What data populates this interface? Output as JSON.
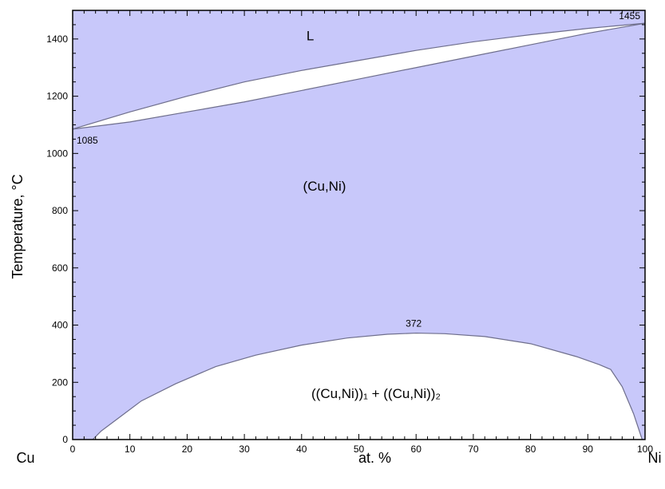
{
  "chart_data": {
    "type": "area",
    "xlabel": "at. %",
    "ylabel": "Temperature, °C",
    "xlim": [
      0,
      100
    ],
    "ylim": [
      0,
      1500
    ],
    "grid": false,
    "fill_color": "#c8c8fa",
    "line_color": "#6e6e8c",
    "gap_color": "#ffffff",
    "x_ticks": [
      0,
      10,
      20,
      30,
      40,
      50,
      60,
      70,
      80,
      90,
      100
    ],
    "y_ticks": [
      0,
      200,
      400,
      600,
      800,
      1000,
      1200,
      1400
    ],
    "x_end_labels": {
      "left": "Cu",
      "right": "Ni"
    },
    "region_labels": [
      {
        "text": "L",
        "x": 41.5,
        "y": 1395
      },
      {
        "text": "(Cu,Ni)",
        "x": 44,
        "y": 870
      },
      {
        "text": "((Cu,Ni))₁ + ((Cu,Ni))₂",
        "x": 53,
        "y": 145
      }
    ],
    "point_labels": [
      {
        "text": "1085",
        "x": 0,
        "y": 1085
      },
      {
        "text": "1455",
        "x": 100,
        "y": 1455
      },
      {
        "text": "372",
        "x": 60,
        "y": 372
      }
    ],
    "series": [
      {
        "x": [
          0,
          10,
          20,
          30,
          40,
          50,
          60,
          70,
          80,
          90,
          100
        ],
        "y": [
          1085,
          1145,
          1200,
          1250,
          1290,
          1325,
          1360,
          1390,
          1415,
          1437,
          1455
        ]
      },
      {
        "x": [
          0,
          10,
          20,
          30,
          40,
          50,
          60,
          70,
          80,
          90,
          100
        ],
        "y": [
          1085,
          1110,
          1145,
          1180,
          1220,
          1260,
          1300,
          1340,
          1380,
          1420,
          1455
        ]
      },
      {
        "x": [
          3.5,
          5,
          8,
          12,
          18,
          25,
          32,
          40,
          48,
          55,
          60,
          65,
          72,
          80,
          88,
          92,
          94,
          96,
          98,
          99.5
        ],
        "y": [
          0,
          30,
          75,
          135,
          195,
          255,
          295,
          330,
          355,
          368,
          372,
          370,
          360,
          335,
          290,
          262,
          245,
          185,
          90,
          0
        ]
      }
    ]
  }
}
